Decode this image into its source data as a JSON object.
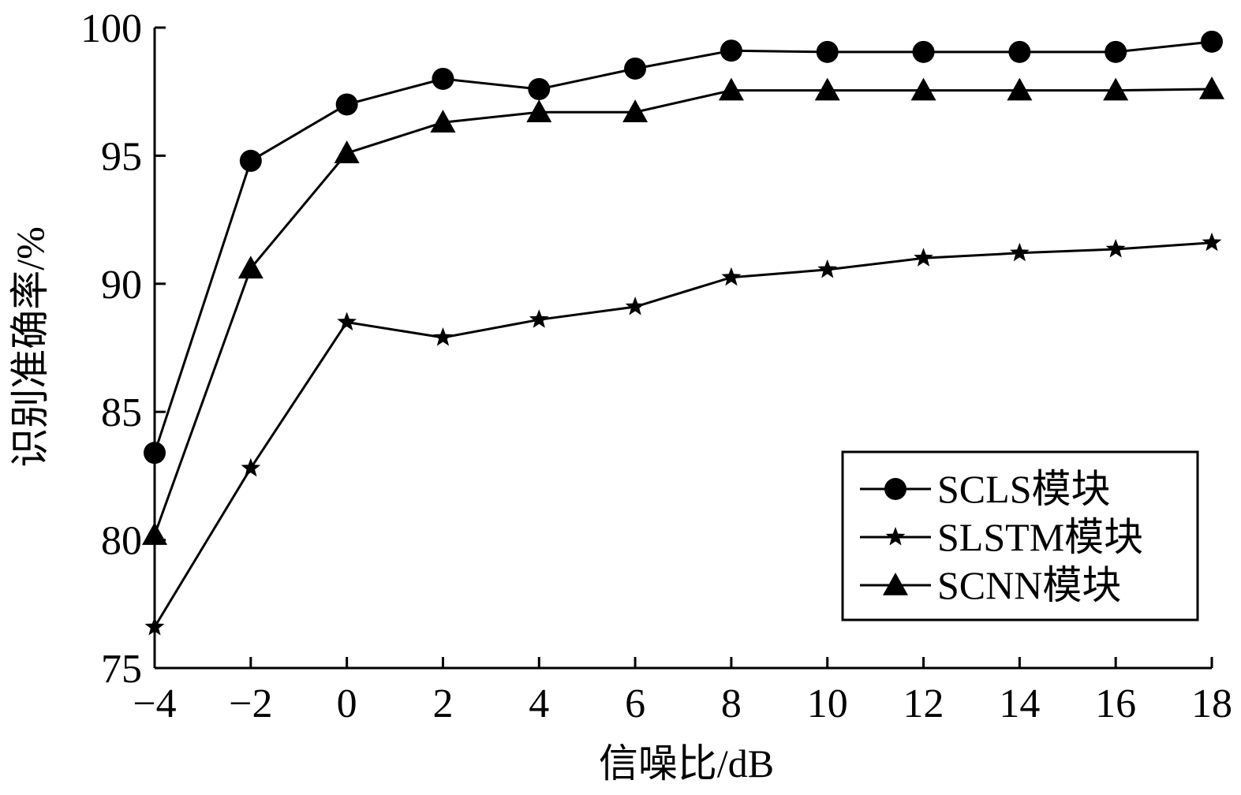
{
  "chart_data": {
    "type": "line",
    "xlabel": "信噪比/dB",
    "ylabel": "识别准确率/%",
    "x": [
      -4,
      -2,
      0,
      2,
      4,
      6,
      8,
      10,
      12,
      14,
      16,
      18
    ],
    "xticks": [
      -4,
      -2,
      0,
      2,
      4,
      6,
      8,
      10,
      12,
      14,
      16,
      18
    ],
    "xtick_labels": [
      "−4",
      "−2",
      "0",
      "2",
      "4",
      "6",
      "8",
      "10",
      "12",
      "14",
      "16",
      "18"
    ],
    "yticks": [
      75,
      80,
      85,
      90,
      95,
      100
    ],
    "ytick_labels": [
      "75",
      "80",
      "85",
      "90",
      "95",
      "100"
    ],
    "xlim": [
      -4,
      18
    ],
    "ylim": [
      75,
      100
    ],
    "grid": false,
    "legend_position": "bottom-right",
    "series": [
      {
        "name": "SCLS模块",
        "marker": "circle",
        "values": [
          83.4,
          94.8,
          97.0,
          98.0,
          97.6,
          98.4,
          99.1,
          99.05,
          99.05,
          99.05,
          99.05,
          99.45
        ]
      },
      {
        "name": "SLSTM模块",
        "marker": "star",
        "values": [
          76.6,
          82.8,
          88.5,
          87.9,
          88.6,
          89.1,
          90.25,
          90.55,
          91.0,
          91.2,
          91.35,
          91.6
        ]
      },
      {
        "name": "SCNN模块",
        "marker": "triangle",
        "values": [
          80.2,
          90.6,
          95.1,
          96.3,
          96.7,
          96.7,
          97.55,
          97.55,
          97.55,
          97.55,
          97.55,
          97.6
        ]
      }
    ]
  }
}
